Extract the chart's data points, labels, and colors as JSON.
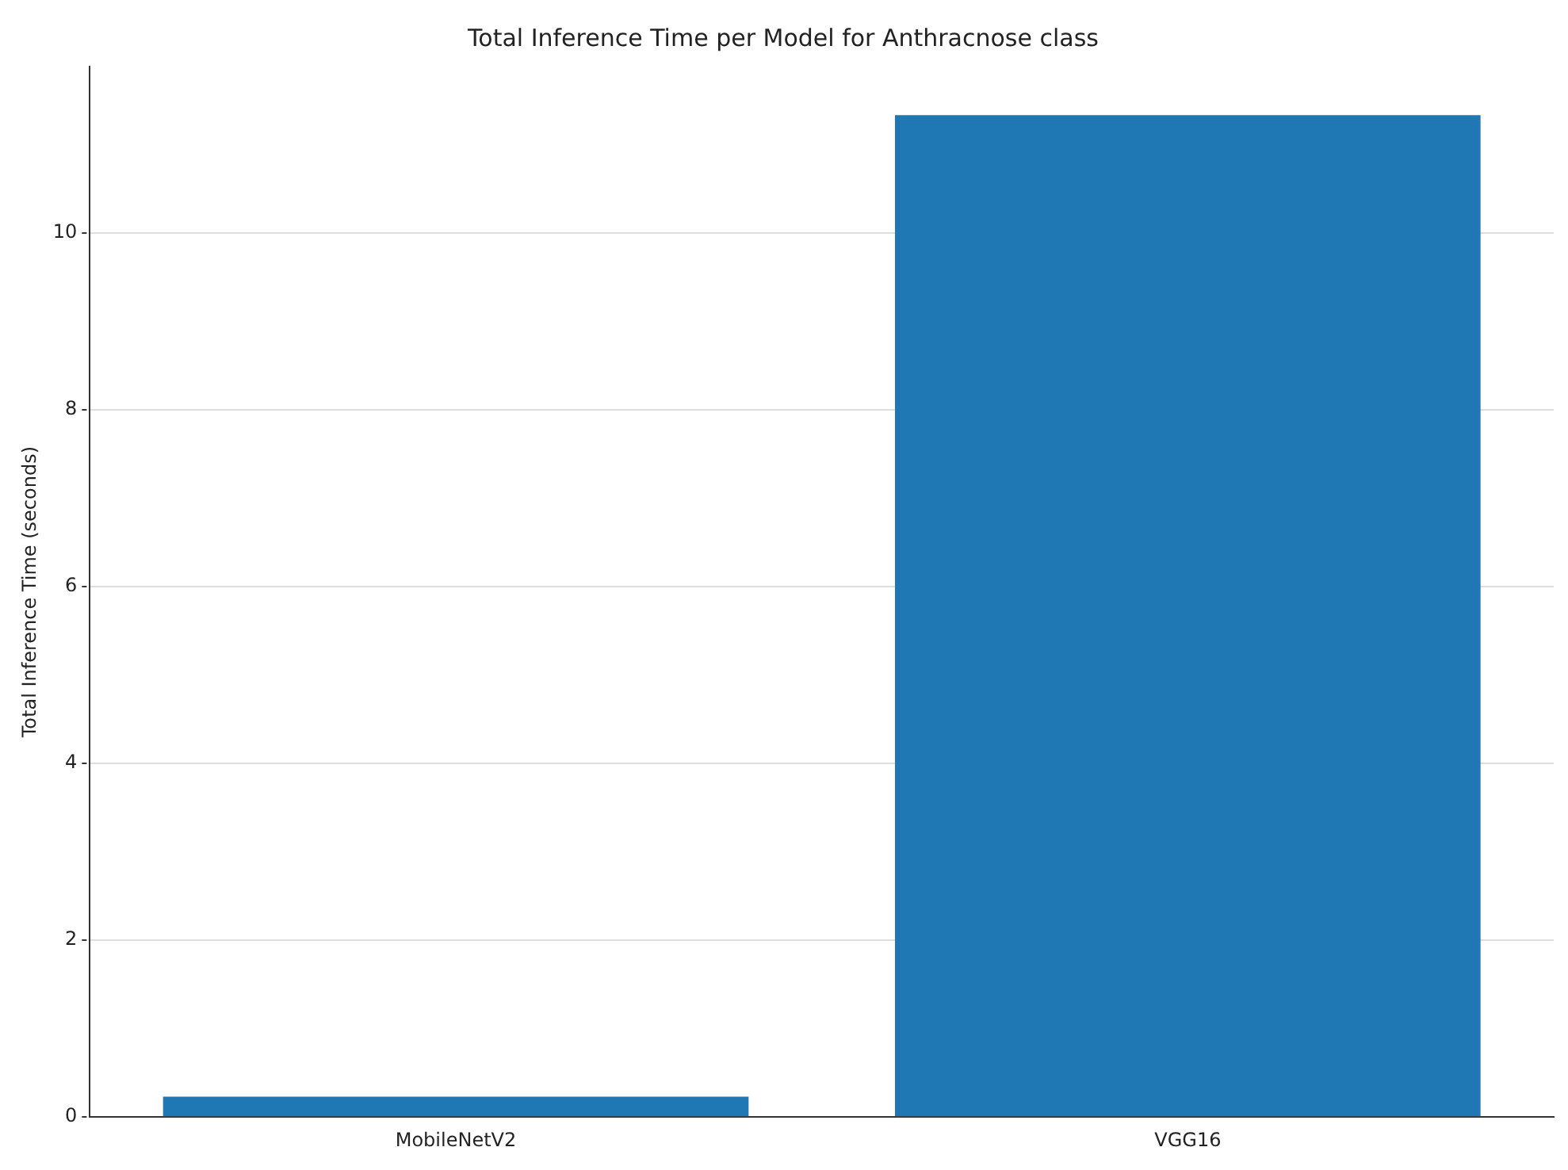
{
  "chart_data": {
    "type": "bar",
    "title": "Total Inference Time per Model for Anthracnose class",
    "ylabel": "Total Inference Time (seconds)",
    "categories": [
      "MobileNetV2",
      "VGG16"
    ],
    "values": [
      0.23,
      11.33
    ],
    "color": "#1f77b4",
    "ylim": [
      0,
      11.88
    ],
    "yticks": [
      0,
      2,
      4,
      6,
      8,
      10
    ],
    "grid": "y"
  }
}
